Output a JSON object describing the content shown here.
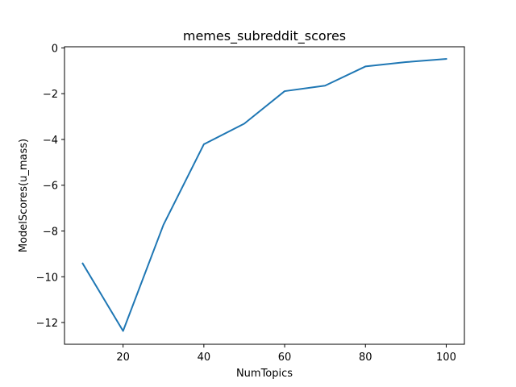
{
  "chart_data": {
    "type": "line",
    "title": "memes_subreddit_scores",
    "xlabel": "NumTopics",
    "ylabel": "ModelScores(u_mass)",
    "xlim": [
      5.5,
      104.5
    ],
    "ylim": [
      -12.95,
      0.05
    ],
    "x_ticks": [
      20,
      40,
      60,
      80,
      100
    ],
    "x_tick_labels": [
      "20",
      "40",
      "60",
      "80",
      "100"
    ],
    "y_ticks": [
      0,
      -2,
      -4,
      -6,
      -8,
      -10,
      -12
    ],
    "y_tick_labels": [
      "0",
      "−2",
      "−4",
      "−6",
      "−8",
      "−10",
      "−12"
    ],
    "grid": false,
    "series": [
      {
        "color": "#1f77b4",
        "x": [
          10,
          20,
          30,
          40,
          50,
          60,
          70,
          80,
          90,
          100
        ],
        "y": [
          -9.42,
          -12.37,
          -7.73,
          -4.21,
          -3.31,
          -1.89,
          -1.65,
          -0.81,
          -0.62,
          -0.48
        ]
      }
    ]
  }
}
